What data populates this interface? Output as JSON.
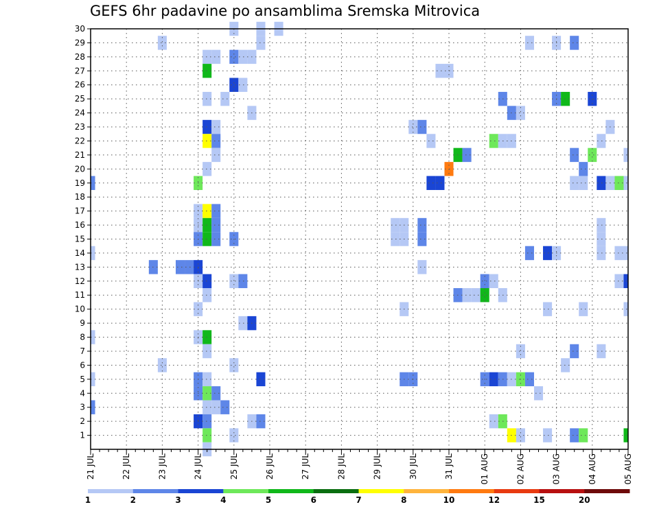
{
  "title": "GEFS 6hr padavine po ansamblima Sremska Mitrovica",
  "chart_data": {
    "type": "heatmap",
    "title": "GEFS 6hr padavine po ansamblima Sremska Mitrovica",
    "xlabel": "",
    "ylabel": "",
    "x_tick_labels": [
      "21 JUL",
      "22 JUL",
      "23 JUL",
      "24 JUL",
      "25 JUL",
      "26 JUL",
      "27 JUL",
      "28 JUL",
      "29 JUL",
      "30 JUL",
      "31 JUL",
      "01 AUG",
      "02 AUG",
      "03 AUG",
      "04 AUG",
      "05 AUG"
    ],
    "x_steps_per_day": 4,
    "x_total_steps": 61,
    "y_tick_labels": [
      "1",
      "2",
      "3",
      "4",
      "5",
      "6",
      "7",
      "8",
      "9",
      "10",
      "11",
      "12",
      "13",
      "14",
      "15",
      "16",
      "17",
      "18",
      "19",
      "20",
      "21",
      "22",
      "23",
      "24",
      "25",
      "26",
      "27",
      "28",
      "29",
      "30"
    ],
    "ylim": [
      0,
      30
    ],
    "grid": true,
    "colorbar": {
      "placement": "bottom",
      "labels": [
        "1",
        "2",
        "3",
        "4",
        "5",
        "6",
        "7",
        "8",
        "10",
        "12",
        "15",
        "20"
      ],
      "colors": [
        "#b5c8f5",
        "#5e86e8",
        "#1a45d4",
        "#6ee85a",
        "#10b81a",
        "#0a6e10",
        "#ffff00",
        "#ffb43c",
        "#ff7a10",
        "#e83a10",
        "#b81010",
        "#6e0a0a"
      ]
    },
    "cells_format": "member, time step (6h steps from 21 JUL 00), class index into colorbar.colors",
    "cells": [
      [
        30,
        16,
        0
      ],
      [
        30,
        19,
        0
      ],
      [
        30,
        21,
        0
      ],
      [
        29,
        8,
        0
      ],
      [
        29,
        19,
        0
      ],
      [
        29,
        49,
        0
      ],
      [
        29,
        52,
        0
      ],
      [
        29,
        54,
        1
      ],
      [
        28,
        13,
        0
      ],
      [
        28,
        14,
        0
      ],
      [
        28,
        16,
        1
      ],
      [
        28,
        17,
        0
      ],
      [
        28,
        18,
        0
      ],
      [
        27,
        13,
        4
      ],
      [
        27,
        39,
        0
      ],
      [
        27,
        40,
        0
      ],
      [
        26,
        16,
        2
      ],
      [
        26,
        17,
        0
      ],
      [
        25,
        13,
        0
      ],
      [
        25,
        15,
        0
      ],
      [
        25,
        46,
        1
      ],
      [
        25,
        52,
        1
      ],
      [
        25,
        53,
        4
      ],
      [
        25,
        56,
        2
      ],
      [
        24,
        18,
        0
      ],
      [
        24,
        47,
        1
      ],
      [
        24,
        48,
        0
      ],
      [
        23,
        13,
        2
      ],
      [
        23,
        14,
        0
      ],
      [
        23,
        36,
        0
      ],
      [
        23,
        37,
        1
      ],
      [
        23,
        58,
        0
      ],
      [
        22,
        13,
        6
      ],
      [
        22,
        14,
        1
      ],
      [
        22,
        38,
        0
      ],
      [
        22,
        45,
        3
      ],
      [
        22,
        46,
        0
      ],
      [
        22,
        47,
        0
      ],
      [
        22,
        57,
        0
      ],
      [
        21,
        14,
        0
      ],
      [
        21,
        41,
        4
      ],
      [
        21,
        42,
        1
      ],
      [
        21,
        54,
        1
      ],
      [
        21,
        56,
        3
      ],
      [
        21,
        60,
        0
      ],
      [
        20,
        13,
        0
      ],
      [
        20,
        40,
        8
      ],
      [
        20,
        55,
        1
      ],
      [
        19,
        0,
        1
      ],
      [
        19,
        12,
        3
      ],
      [
        19,
        38,
        2
      ],
      [
        19,
        39,
        2
      ],
      [
        19,
        54,
        0
      ],
      [
        19,
        55,
        0
      ],
      [
        19,
        57,
        2
      ],
      [
        19,
        58,
        0
      ],
      [
        19,
        59,
        3
      ],
      [
        19,
        60,
        0
      ],
      [
        17,
        12,
        0
      ],
      [
        17,
        13,
        6
      ],
      [
        17,
        14,
        1
      ],
      [
        16,
        12,
        0
      ],
      [
        16,
        13,
        4
      ],
      [
        16,
        14,
        1
      ],
      [
        16,
        34,
        0
      ],
      [
        16,
        35,
        0
      ],
      [
        16,
        37,
        1
      ],
      [
        16,
        57,
        0
      ],
      [
        15,
        12,
        1
      ],
      [
        15,
        13,
        4
      ],
      [
        15,
        14,
        1
      ],
      [
        15,
        16,
        1
      ],
      [
        15,
        34,
        0
      ],
      [
        15,
        35,
        0
      ],
      [
        15,
        37,
        1
      ],
      [
        15,
        57,
        0
      ],
      [
        14,
        0,
        0
      ],
      [
        14,
        49,
        1
      ],
      [
        14,
        51,
        2
      ],
      [
        14,
        52,
        0
      ],
      [
        14,
        57,
        0
      ],
      [
        14,
        59,
        0
      ],
      [
        14,
        60,
        0
      ],
      [
        13,
        7,
        1
      ],
      [
        13,
        10,
        1
      ],
      [
        13,
        11,
        1
      ],
      [
        13,
        12,
        2
      ],
      [
        13,
        37,
        0
      ],
      [
        12,
        12,
        0
      ],
      [
        12,
        13,
        2
      ],
      [
        12,
        16,
        0
      ],
      [
        12,
        17,
        1
      ],
      [
        12,
        44,
        1
      ],
      [
        12,
        45,
        0
      ],
      [
        12,
        59,
        0
      ],
      [
        12,
        60,
        2
      ],
      [
        11,
        13,
        0
      ],
      [
        11,
        41,
        1
      ],
      [
        11,
        42,
        0
      ],
      [
        11,
        43,
        0
      ],
      [
        11,
        44,
        4
      ],
      [
        11,
        46,
        0
      ],
      [
        10,
        12,
        0
      ],
      [
        10,
        35,
        0
      ],
      [
        10,
        51,
        0
      ],
      [
        10,
        55,
        0
      ],
      [
        10,
        60,
        0
      ],
      [
        9,
        17,
        0
      ],
      [
        9,
        18,
        2
      ],
      [
        8,
        0,
        0
      ],
      [
        8,
        12,
        0
      ],
      [
        8,
        13,
        4
      ],
      [
        7,
        13,
        0
      ],
      [
        7,
        48,
        0
      ],
      [
        7,
        54,
        1
      ],
      [
        7,
        57,
        0
      ],
      [
        6,
        8,
        0
      ],
      [
        6,
        16,
        0
      ],
      [
        6,
        53,
        0
      ],
      [
        5,
        0,
        0
      ],
      [
        5,
        12,
        1
      ],
      [
        5,
        13,
        0
      ],
      [
        5,
        19,
        2
      ],
      [
        5,
        35,
        1
      ],
      [
        5,
        36,
        1
      ],
      [
        5,
        44,
        1
      ],
      [
        5,
        45,
        2
      ],
      [
        5,
        46,
        1
      ],
      [
        5,
        47,
        0
      ],
      [
        5,
        48,
        3
      ],
      [
        5,
        49,
        1
      ],
      [
        4,
        12,
        1
      ],
      [
        4,
        13,
        3
      ],
      [
        4,
        14,
        1
      ],
      [
        4,
        50,
        0
      ],
      [
        3,
        0,
        1
      ],
      [
        3,
        13,
        0
      ],
      [
        3,
        14,
        0
      ],
      [
        3,
        15,
        1
      ],
      [
        2,
        12,
        2
      ],
      [
        2,
        13,
        1
      ],
      [
        2,
        18,
        0
      ],
      [
        2,
        19,
        1
      ],
      [
        2,
        45,
        0
      ],
      [
        2,
        46,
        3
      ],
      [
        1,
        13,
        3
      ],
      [
        1,
        16,
        0
      ],
      [
        1,
        47,
        6
      ],
      [
        1,
        48,
        0
      ],
      [
        1,
        51,
        0
      ],
      [
        1,
        54,
        1
      ],
      [
        1,
        55,
        3
      ],
      [
        1,
        60,
        4
      ],
      [
        0,
        13,
        0
      ]
    ]
  }
}
